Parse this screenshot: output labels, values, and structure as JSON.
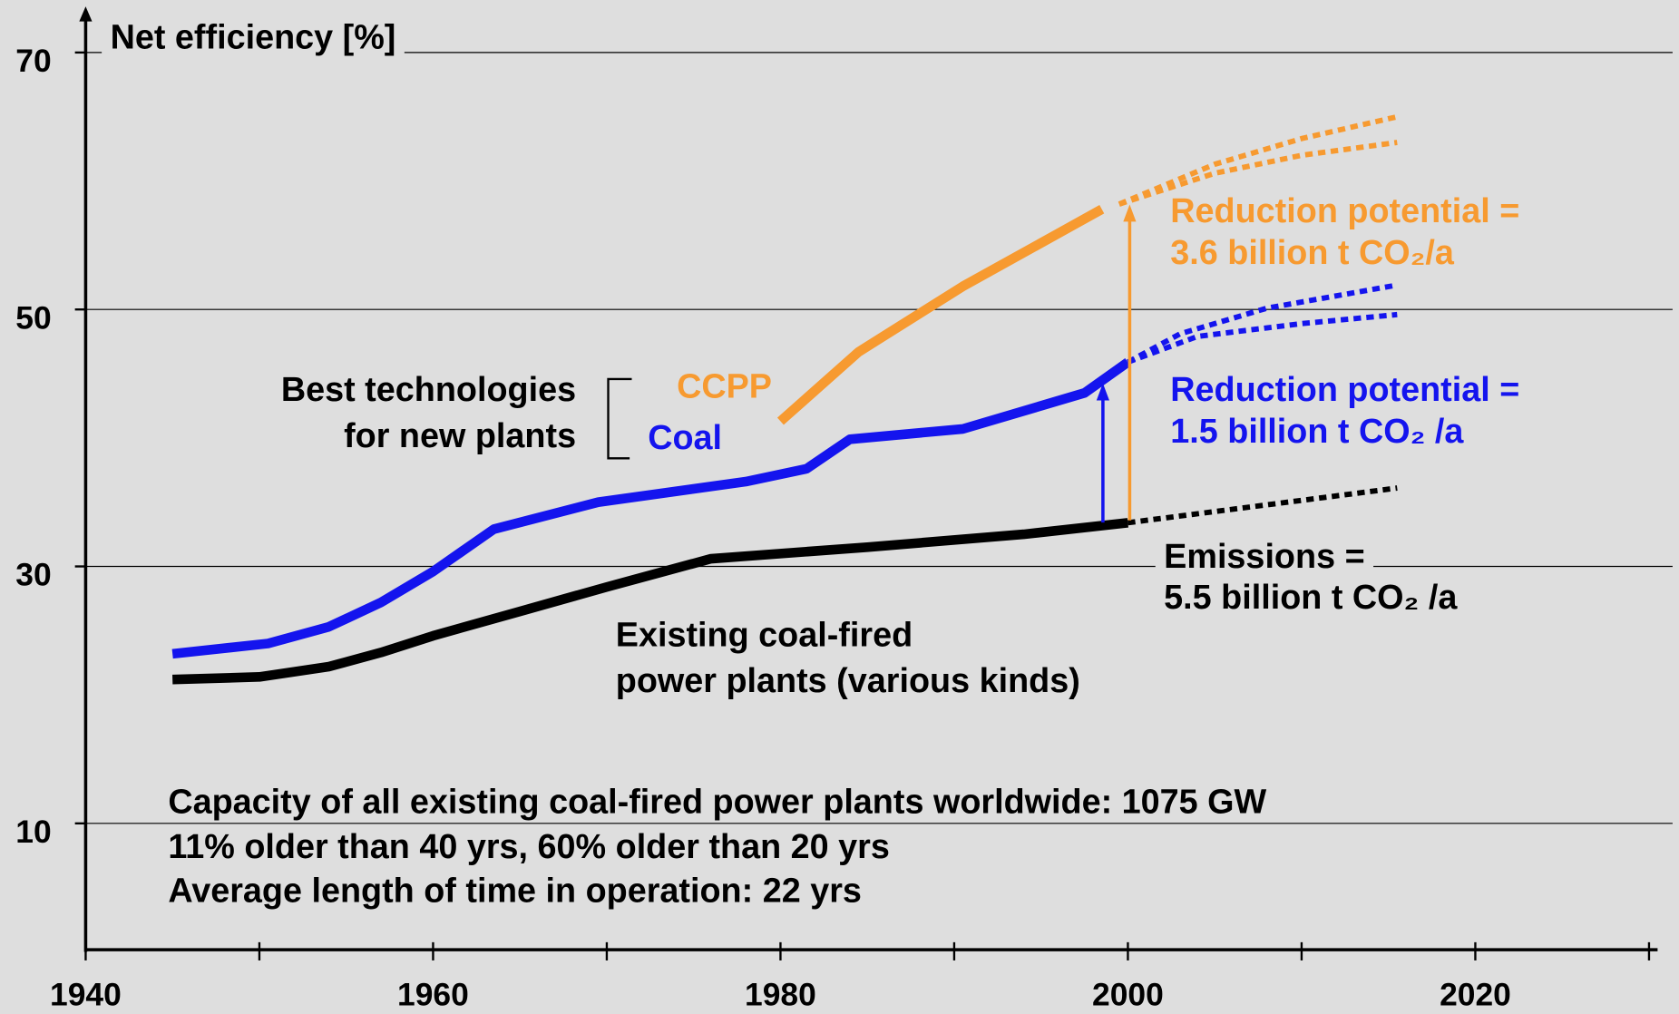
{
  "chart_data": {
    "type": "line",
    "y_label": "Net efficiency [%]",
    "xlim": [
      1940,
      2030
    ],
    "ylim": [
      0,
      73
    ],
    "xticks": [
      1940,
      1960,
      1980,
      2000,
      2020
    ],
    "xminorticks": [
      1950,
      1970,
      1990,
      2010,
      2030
    ],
    "yticks": [
      10,
      30,
      50,
      70
    ],
    "grid": true,
    "series": [
      {
        "color": "#000000",
        "dotted": false,
        "x": [
          1945,
          1950,
          1954,
          1957,
          1960,
          1965,
          1970,
          1976,
          1985,
          1994,
          2000
        ],
        "values": [
          21.2,
          21.4,
          22.2,
          23.3,
          24.6,
          26.5,
          28.4,
          30.6,
          31.5,
          32.5,
          33.4
        ]
      },
      {
        "color": "#000000",
        "dotted": true,
        "x": [
          2000,
          2015.5
        ],
        "values": [
          33.4,
          36.1
        ]
      },
      {
        "color": "#1414ee",
        "dotted": false,
        "x": [
          1945,
          1950.5,
          1954,
          1957,
          1960,
          1963.5,
          1969.5,
          1978,
          1981.5,
          1984,
          1990.5,
          1997.5,
          2000
        ],
        "values": [
          23.2,
          24,
          25.3,
          27.2,
          29.6,
          32.9,
          35,
          36.6,
          37.6,
          39.9,
          40.7,
          43.5,
          45.9
        ]
      },
      {
        "color": "#1414ee",
        "dotted": true,
        "x": [
          2000,
          2003,
          2008,
          2015.5
        ],
        "values": [
          45.9,
          48.1,
          50.1,
          51.9
        ]
      },
      {
        "color": "#1414ee",
        "dotted": true,
        "x": [
          2000,
          2004,
          2010,
          2015.5
        ],
        "values": [
          45.9,
          47.9,
          48.9,
          49.6
        ]
      },
      {
        "color": "#f79a30",
        "dotted": false,
        "x": [
          1980,
          1984.5,
          1990.5,
          1998.5
        ],
        "values": [
          41.3,
          46.7,
          51.8,
          57.8
        ]
      },
      {
        "color": "#f79a30",
        "dotted": true,
        "x": [
          1999.5,
          2005,
          2010,
          2015.5
        ],
        "values": [
          58.2,
          61.3,
          63.3,
          65
        ]
      },
      {
        "color": "#f79a30",
        "dotted": true,
        "x": [
          1999.5,
          2005,
          2010,
          2015.5
        ],
        "values": [
          58.2,
          60.6,
          62,
          63
        ]
      }
    ],
    "annotations": {
      "best": [
        "Best technologies",
        "for new plants"
      ],
      "ccpp": "CCPP",
      "coal": "Coal",
      "ccpp_potential": [
        "Reduction potential =",
        "3.6 billion t CO₂/a"
      ],
      "coal_potential": [
        "Reduction potential =",
        "1.5 billion t CO₂ /a"
      ],
      "emissions": [
        "Emissions =",
        "5.5 billion t CO₂ /a"
      ],
      "existing": [
        "Existing coal-fired",
        "power plants (various kinds)"
      ],
      "capacity": [
        "Capacity of all existing coal-fired power plants worldwide: 1075 GW",
        "11% older than 40 yrs, 60% older than 20 yrs",
        "Average length of time in operation: 22 yrs"
      ]
    }
  }
}
